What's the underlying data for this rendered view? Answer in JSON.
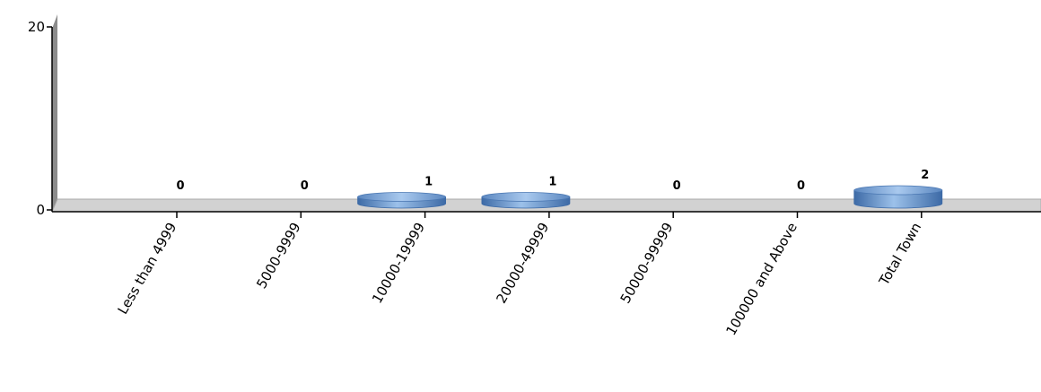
{
  "chart_data": {
    "type": "bar",
    "categories": [
      "Less than 4999",
      "5000-9999",
      "10000-19999",
      "20000-49999",
      "50000-99999",
      "100000 and Above",
      "Total Town"
    ],
    "values": [
      0,
      0,
      1,
      1,
      0,
      0,
      2
    ],
    "data_labels": [
      "0",
      "0",
      "1",
      "1",
      "0",
      "0",
      "2"
    ],
    "ylim": [
      0,
      20
    ],
    "yticks": [
      0,
      20
    ],
    "ytick_labels": [
      "0",
      "20"
    ],
    "grid": false,
    "legend": "none",
    "colors": {
      "bar": "#5b87c0",
      "bar_light": "#9cc1ea",
      "bar_dark": "#3d6aa6",
      "floor": "#d2d2d2",
      "floor_edge": "#a9a9a9",
      "wall": "#8c8c8c"
    }
  }
}
